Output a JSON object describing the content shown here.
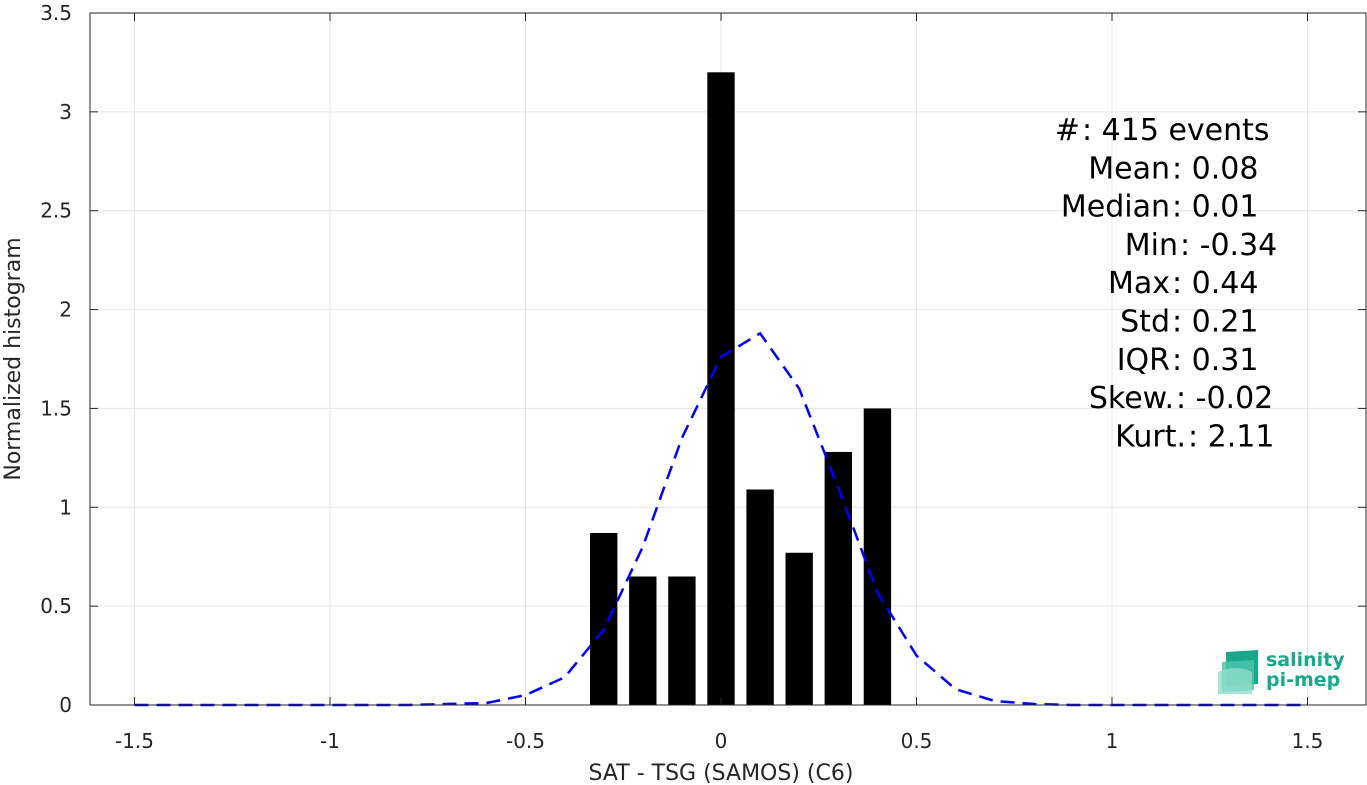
{
  "chart_data": {
    "type": "bar",
    "xlabel": "SAT - TSG (SAMOS) (C6)",
    "ylabel": "Normalized histogram",
    "xlim": [
      -1.5,
      1.5
    ],
    "ylim": [
      0,
      3.5
    ],
    "grid": true,
    "x_ticks": [
      "-1.5",
      "-1",
      "-0.5",
      "0",
      "0.5",
      "1",
      "1.5"
    ],
    "y_ticks": [
      "0",
      "0.5",
      "1",
      "1.5",
      "2",
      "2.5",
      "3",
      "3.5"
    ],
    "bars": {
      "color": "#000000",
      "x": [
        -0.3,
        -0.2,
        -0.1,
        0.0,
        0.1,
        0.2,
        0.3,
        0.4
      ],
      "values": [
        0.87,
        0.65,
        0.65,
        3.2,
        1.09,
        0.77,
        1.28,
        1.5
      ]
    },
    "fit_curve": {
      "style": "dashed",
      "color": "#0000ff",
      "x": [
        -1.5,
        -1.4,
        -1.3,
        -1.2,
        -1.1,
        -1.0,
        -0.9,
        -0.8,
        -0.7,
        -0.6,
        -0.5,
        -0.4,
        -0.3,
        -0.2,
        -0.1,
        0.0,
        0.1,
        0.2,
        0.3,
        0.4,
        0.5,
        0.6,
        0.7,
        0.8,
        0.9,
        1.0,
        1.1,
        1.2,
        1.3,
        1.4,
        1.5
      ],
      "y": [
        0,
        0,
        0,
        0,
        0,
        0,
        0,
        0,
        0.005,
        0.01,
        0.05,
        0.14,
        0.38,
        0.8,
        1.35,
        1.76,
        1.88,
        1.6,
        1.1,
        0.57,
        0.25,
        0.08,
        0.02,
        0.005,
        0,
        0,
        0,
        0,
        0,
        0,
        0
      ]
    },
    "stats": [
      {
        "label": "#  ",
        "value": ": 415 events"
      },
      {
        "label": "Mean ",
        "value": ": 0.08"
      },
      {
        "label": "Median ",
        "value": ": 0.01"
      },
      {
        "label": "Min ",
        "value": ": -0.34"
      },
      {
        "label": "Max ",
        "value": ": 0.44"
      },
      {
        "label": "Std ",
        "value": ": 0.21"
      },
      {
        "label": "IQR ",
        "value": ": 0.31"
      },
      {
        "label": "Skew. ",
        "value": ": -0.02"
      },
      {
        "label": "Kurt. ",
        "value": ": 2.11"
      }
    ]
  },
  "logo": {
    "line1": "salinity",
    "line2": "pi-mep",
    "color": "#1aa88c"
  }
}
